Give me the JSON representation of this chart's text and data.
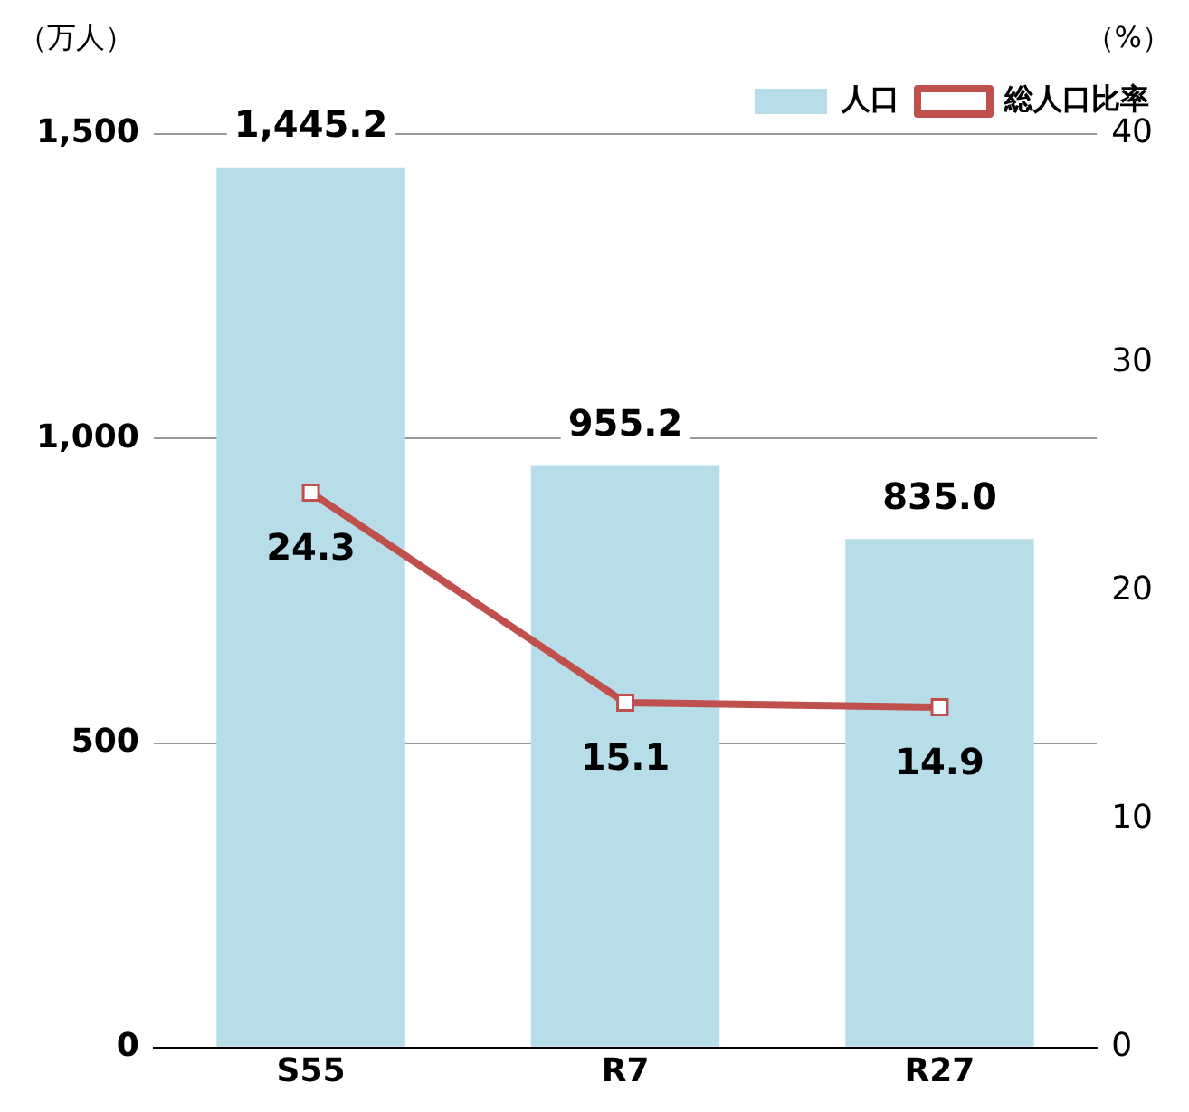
{
  "chart_data": {
    "type": "bar",
    "ylabel": "（万人）",
    "y2label": "（%）",
    "categories": [
      "S55",
      "R7",
      "R27"
    ],
    "series": [
      {
        "name": "人口",
        "color": "#b7dde8",
        "values": [
          1445.2,
          955.2,
          835.0
        ],
        "value_labels": [
          "1,445.2",
          "955.2",
          "835.0"
        ]
      },
      {
        "name": "総人口比率",
        "type": "line",
        "axis": "y2",
        "color": "#c0504d",
        "values": [
          24.3,
          15.1,
          14.9
        ],
        "value_labels": [
          "24.3",
          "15.1",
          "14.9"
        ],
        "marker": "square"
      }
    ],
    "ylim": [
      0,
      1500
    ],
    "yticks": [
      0,
      500,
      {
        "value": 1000,
        "label": "1,000"
      },
      {
        "value": 1500,
        "label": "1,500"
      }
    ],
    "y2lim": [
      0,
      40
    ],
    "y2ticks": [
      0,
      10,
      20,
      30,
      40
    ],
    "grid": "y",
    "legend": "top right"
  }
}
